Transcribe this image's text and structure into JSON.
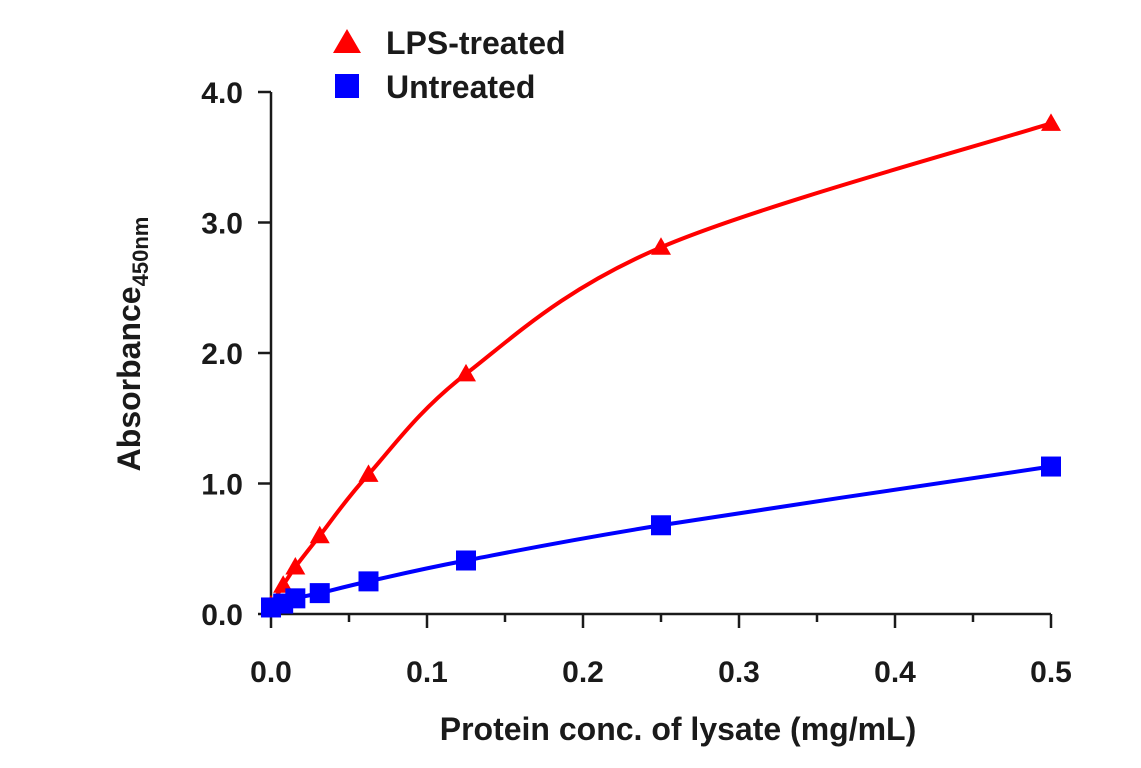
{
  "chart_data": {
    "type": "line",
    "xlabel": "Protein conc. of lysate (mg/mL)",
    "ylabel": "Absorbance",
    "ylabel_sub": "450nm",
    "xlim": [
      0,
      0.5
    ],
    "ylim": [
      0,
      4.0
    ],
    "x_ticks": [
      "0.0",
      "0.1",
      "0.2",
      "0.3",
      "0.4",
      "0.5"
    ],
    "y_ticks": [
      "0.0",
      "1.0",
      "2.0",
      "3.0",
      "4.0"
    ],
    "grid": false,
    "legend_position": "top-left",
    "series": [
      {
        "name": "LPS-treated",
        "color": "#ff0000",
        "marker": "triangle",
        "x": [
          0.0,
          0.0078,
          0.0156,
          0.03125,
          0.0625,
          0.125,
          0.25,
          0.5
        ],
        "y": [
          0.07,
          0.22,
          0.36,
          0.6,
          1.07,
          1.84,
          2.81,
          3.76
        ]
      },
      {
        "name": "Untreated",
        "color": "#0000ff",
        "marker": "square",
        "x": [
          0.0,
          0.0078,
          0.0156,
          0.03125,
          0.0625,
          0.125,
          0.25,
          0.5
        ],
        "y": [
          0.05,
          0.08,
          0.12,
          0.16,
          0.25,
          0.41,
          0.68,
          1.13
        ]
      }
    ]
  }
}
